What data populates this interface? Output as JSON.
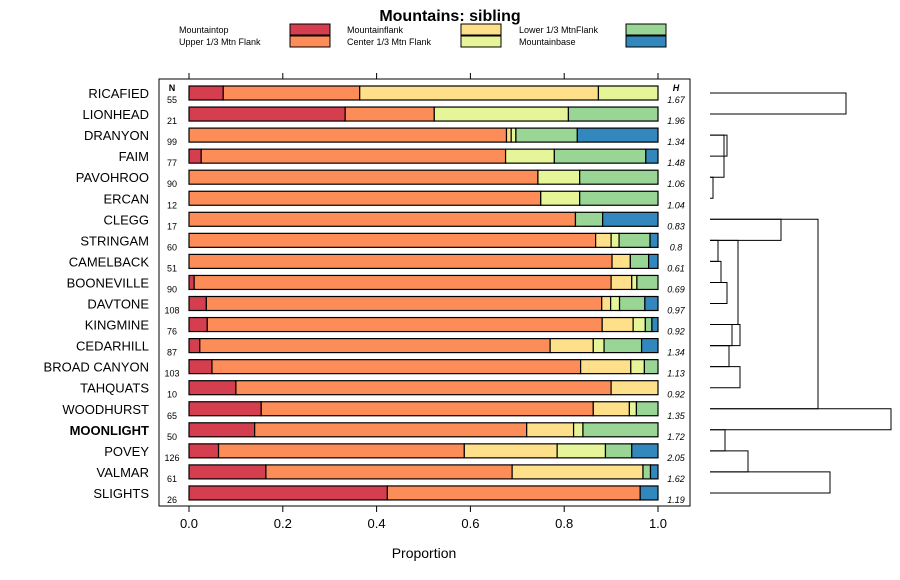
{
  "chart_data": {
    "type": "bar",
    "stacked": true,
    "orientation": "horizontal",
    "title": "Mountains: sibling",
    "xlabel": "Proportion",
    "xlim": [
      0,
      1
    ],
    "xticks": [
      "0.0",
      "0.2",
      "0.4",
      "0.6",
      "0.8",
      "1.0"
    ],
    "n_header": "N",
    "h_header": "H",
    "highlight": "MOONLIGHT",
    "legend": [
      {
        "label": "Mountaintop",
        "color": "#d53e4f"
      },
      {
        "label": "Upper 1/3 Mtn Flank",
        "color": "#fc8d59"
      },
      {
        "label": "Mountainflank",
        "color": "#fee08b"
      },
      {
        "label": "Center 1/3 Mtn Flank",
        "color": "#e6f598"
      },
      {
        "label": "Lower 1/3 MtnFlank",
        "color": "#99d594"
      },
      {
        "label": "Mountainbase",
        "color": "#3288bd"
      }
    ],
    "rows": [
      {
        "name": "RICAFIED",
        "n": "55",
        "h": "1.67",
        "values": [
          0.073,
          0.291,
          0.509,
          0.127,
          0,
          0
        ]
      },
      {
        "name": "LIONHEAD",
        "n": "21",
        "h": "1.96",
        "values": [
          0.333,
          0.19,
          0,
          0.286,
          0.191,
          0
        ]
      },
      {
        "name": "DRANYON",
        "n": "99",
        "h": "1.34",
        "values": [
          0,
          0.677,
          0.01,
          0.01,
          0.131,
          0.172
        ]
      },
      {
        "name": "FAIM",
        "n": "77",
        "h": "1.48",
        "values": [
          0.026,
          0.649,
          0,
          0.104,
          0.195,
          0.026
        ]
      },
      {
        "name": "PAVOHROO",
        "n": "90",
        "h": "1.06",
        "values": [
          0,
          0.744,
          0,
          0.089,
          0.167,
          0
        ]
      },
      {
        "name": "ERCAN",
        "n": "12",
        "h": "1.04",
        "values": [
          0,
          0.75,
          0,
          0.083,
          0.167,
          0
        ]
      },
      {
        "name": "CLEGG",
        "n": "17",
        "h": "0.83",
        "values": [
          0,
          0.824,
          0,
          0,
          0.058,
          0.118
        ]
      },
      {
        "name": "STRINGAM",
        "n": "60",
        "h": "0.8",
        "values": [
          0,
          0.867,
          0.033,
          0.017,
          0.066,
          0.017
        ]
      },
      {
        "name": "CAMELBACK",
        "n": "51",
        "h": "0.61",
        "values": [
          0,
          0.902,
          0.039,
          0,
          0.039,
          0.02
        ]
      },
      {
        "name": "BOONEVILLE",
        "n": "90",
        "h": "0.69",
        "values": [
          0.011,
          0.889,
          0.044,
          0.011,
          0.045,
          0
        ]
      },
      {
        "name": "DAVTONE",
        "n": "108",
        "h": "0.97",
        "values": [
          0.037,
          0.843,
          0.019,
          0.019,
          0.054,
          0.028
        ]
      },
      {
        "name": "KINGMINE",
        "n": "76",
        "h": "0.92",
        "values": [
          0.039,
          0.842,
          0.066,
          0.026,
          0.014,
          0.013
        ]
      },
      {
        "name": "CEDARHILL",
        "n": "87",
        "h": "1.34",
        "values": [
          0.023,
          0.747,
          0.092,
          0.023,
          0.08,
          0.035
        ]
      },
      {
        "name": "BROAD CANYON",
        "n": "103",
        "h": "1.13",
        "values": [
          0.049,
          0.786,
          0.107,
          0.029,
          0.029,
          0
        ]
      },
      {
        "name": "TAHQUATS",
        "n": "10",
        "h": "0.92",
        "values": [
          0.1,
          0.8,
          0.1,
          0,
          0,
          0
        ]
      },
      {
        "name": "WOODHURST",
        "n": "65",
        "h": "1.35",
        "values": [
          0.154,
          0.708,
          0.077,
          0.015,
          0.046,
          0
        ]
      },
      {
        "name": "MOONLIGHT",
        "n": "50",
        "h": "1.72",
        "values": [
          0.14,
          0.58,
          0.1,
          0.02,
          0.16,
          0
        ]
      },
      {
        "name": "POVEY",
        "n": "126",
        "h": "2.05",
        "values": [
          0.063,
          0.524,
          0.198,
          0.103,
          0.056,
          0.056
        ]
      },
      {
        "name": "VALMAR",
        "n": "61",
        "h": "1.62",
        "values": [
          0.164,
          0.525,
          0.279,
          0,
          0.016,
          0.016
        ]
      },
      {
        "name": "SLIGHTS",
        "n": "26",
        "h": "1.19",
        "values": [
          0.423,
          0.539,
          0,
          0,
          0,
          0.038
        ]
      }
    ]
  }
}
